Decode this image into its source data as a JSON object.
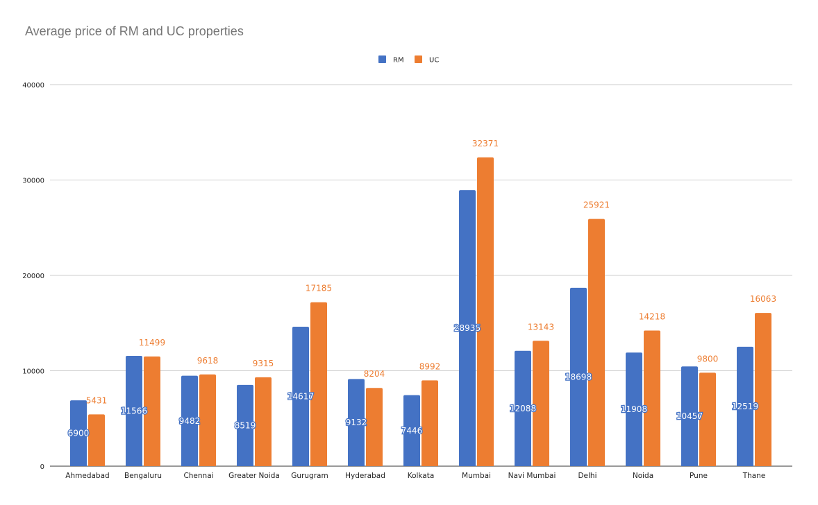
{
  "chart_data": {
    "type": "bar",
    "title": "Average price of RM and UC properties",
    "xlabel": "",
    "ylabel": "",
    "ylim": [
      0,
      40000
    ],
    "yticks": [
      0,
      10000,
      20000,
      30000,
      40000
    ],
    "grid": true,
    "legend_position": "top",
    "categories": [
      "Ahmedabad",
      "Bengaluru",
      "Chennai",
      "Greater Noida",
      "Gurugram",
      "Hyderabad",
      "Kolkata",
      "Mumbai",
      "Navi Mumbai",
      "Delhi",
      "Noida",
      "Pune",
      "Thane"
    ],
    "series": [
      {
        "name": "RM",
        "color": "#4472c4",
        "values": [
          6900,
          11566,
          9482,
          8519,
          14617,
          9132,
          7446,
          28935,
          12088,
          18698,
          11908,
          10457,
          12519
        ]
      },
      {
        "name": "UC",
        "color": "#ed7d31",
        "values": [
          5431,
          11499,
          9618,
          9315,
          17185,
          8204,
          8992,
          32371,
          13143,
          25921,
          14218,
          9800,
          16063
        ]
      }
    ]
  }
}
